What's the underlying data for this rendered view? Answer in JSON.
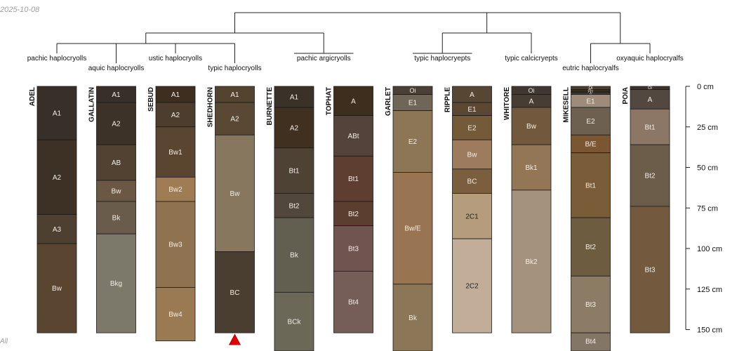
{
  "chart_data": {
    "type": "soil-profile-sketch",
    "date": "2025-10-08",
    "corner_label": "All",
    "depth_axis": {
      "unit": "cm",
      "ticks": [
        0,
        25,
        50,
        75,
        100,
        125,
        150
      ],
      "tick_labels": [
        "0 cm",
        "25 cm",
        "50 cm",
        "75 cm",
        "100 cm",
        "125 cm",
        "150 cm"
      ]
    },
    "taxa": [
      "pachic haplocryolls",
      "aquic haplocryolls",
      "ustic haplocryolls",
      "typic haplocryolls",
      "pachic argicryolls",
      "typic haplocryepts",
      "typic calcicryepts",
      "eutric haplocryalfs",
      "oxyaquic haplocryalfs"
    ],
    "profiles": [
      {
        "name": "ADEL",
        "taxon": "pachic haplocryolls",
        "horizons": [
          {
            "name": "A1",
            "top": 0,
            "bottom": 33,
            "color": "#383028"
          },
          {
            "name": "A2",
            "top": 33,
            "bottom": 79,
            "color": "#3d3024"
          },
          {
            "name": "A3",
            "top": 79,
            "bottom": 97,
            "color": "#4e4030"
          },
          {
            "name": "Bw",
            "top": 97,
            "bottom": 152,
            "color": "#5a4630"
          }
        ]
      },
      {
        "name": "GALLATIN",
        "taxon": "aquic haplocryolls",
        "horizons": [
          {
            "name": "A1",
            "top": 0,
            "bottom": 10,
            "color": "#383028"
          },
          {
            "name": "A2",
            "top": 10,
            "bottom": 36,
            "color": "#3d3228"
          },
          {
            "name": "AB",
            "top": 36,
            "bottom": 58,
            "color": "#524232"
          },
          {
            "name": "Bw",
            "top": 58,
            "bottom": 71,
            "color": "#6a5844"
          },
          {
            "name": "Bk",
            "top": 71,
            "bottom": 91,
            "color": "#6a5c4a"
          },
          {
            "name": "Bkg",
            "top": 91,
            "bottom": 152,
            "color": "#7c786a"
          }
        ]
      },
      {
        "name": "SEBUD",
        "taxon": "ustic haplocryolls",
        "horizons": [
          {
            "name": "A1",
            "top": 0,
            "bottom": 10,
            "color": "#3d2e20"
          },
          {
            "name": "A2",
            "top": 10,
            "bottom": 25,
            "color": "#4c3d2e"
          },
          {
            "name": "Bw1",
            "top": 25,
            "bottom": 56,
            "color": "#5a4630"
          },
          {
            "name": "Bw2",
            "top": 56,
            "bottom": 71,
            "color": "#a07c54"
          },
          {
            "name": "Bw3",
            "top": 71,
            "bottom": 124,
            "color": "#8f7250"
          },
          {
            "name": "Bw4",
            "top": 124,
            "bottom": 157,
            "color": "#9a7a52"
          }
        ]
      },
      {
        "name": "SHEDHORN",
        "taxon": "typic haplocryolls",
        "truncated": true,
        "horizons": [
          {
            "name": "A1",
            "top": 0,
            "bottom": 10,
            "color": "#54432f"
          },
          {
            "name": "A2",
            "top": 10,
            "bottom": 30,
            "color": "#594834"
          },
          {
            "name": "Bw",
            "top": 30,
            "bottom": 102,
            "color": "#86775e"
          },
          {
            "name": "BC",
            "top": 102,
            "bottom": 152,
            "color": "#4a3e30"
          }
        ]
      },
      {
        "name": "BURNETTE",
        "taxon": "pachic argicryolls",
        "horizons": [
          {
            "name": "A1",
            "top": 0,
            "bottom": 13,
            "color": "#3a3128"
          },
          {
            "name": "A2",
            "top": 13,
            "bottom": 38,
            "color": "#3f3020"
          },
          {
            "name": "Bt1",
            "top": 38,
            "bottom": 66,
            "color": "#4e4234"
          },
          {
            "name": "Bt2",
            "top": 66,
            "bottom": 81,
            "color": "#51473a"
          },
          {
            "name": "Bk",
            "top": 81,
            "bottom": 127,
            "color": "#625e50"
          },
          {
            "name": "BCk",
            "top": 127,
            "bottom": 165,
            "color": "#6c6858"
          }
        ]
      },
      {
        "name": "TOPHAT",
        "taxon": "pachic argicryolls",
        "horizons": [
          {
            "name": "A",
            "top": 0,
            "bottom": 18,
            "color": "#3e2e1e"
          },
          {
            "name": "ABt",
            "top": 18,
            "bottom": 43,
            "color": "#54433a"
          },
          {
            "name": "Bt1",
            "top": 43,
            "bottom": 71,
            "color": "#5e3e30"
          },
          {
            "name": "Bt2",
            "top": 71,
            "bottom": 86,
            "color": "#5c3e30"
          },
          {
            "name": "Bt3",
            "top": 86,
            "bottom": 114,
            "color": "#705450"
          },
          {
            "name": "Bt4",
            "top": 114,
            "bottom": 152,
            "color": "#765e58"
          }
        ]
      },
      {
        "name": "GARLET",
        "taxon": "typic haplocryepts",
        "horizons": [
          {
            "name": "Oi",
            "top": 0,
            "bottom": 5,
            "color": "#4a4038"
          },
          {
            "name": "E1",
            "top": 5,
            "bottom": 15,
            "color": "#6f6658"
          },
          {
            "name": "E2",
            "top": 15,
            "bottom": 53,
            "color": "#8c7656"
          },
          {
            "name": "Bw/E",
            "top": 53,
            "bottom": 122,
            "color": "#987452"
          },
          {
            "name": "Bk",
            "top": 122,
            "bottom": 165,
            "color": "#8c7658"
          }
        ]
      },
      {
        "name": "RIPPLE",
        "taxon": "typic haplocryepts",
        "horizons": [
          {
            "name": "A",
            "top": 0,
            "bottom": 10,
            "color": "#584634"
          },
          {
            "name": "E1",
            "top": 10,
            "bottom": 18,
            "color": "#5c4832"
          },
          {
            "name": "E2",
            "top": 18,
            "bottom": 33,
            "color": "#745a38"
          },
          {
            "name": "Bw",
            "top": 33,
            "bottom": 51,
            "color": "#9c7c5c"
          },
          {
            "name": "BC",
            "top": 51,
            "bottom": 66,
            "color": "#7a5e3e"
          },
          {
            "name": "2C1",
            "top": 66,
            "bottom": 94,
            "color": "#b49c7c"
          },
          {
            "name": "2C2",
            "top": 94,
            "bottom": 152,
            "color": "#c2ae98"
          }
        ]
      },
      {
        "name": "WHITORE",
        "taxon": "typic calcicryepts",
        "horizons": [
          {
            "name": "Oi",
            "top": 0,
            "bottom": 5,
            "color": "#3e3830"
          },
          {
            "name": "A",
            "top": 5,
            "bottom": 13,
            "color": "#463e34"
          },
          {
            "name": "Bw",
            "top": 13,
            "bottom": 36,
            "color": "#72593e"
          },
          {
            "name": "Bk1",
            "top": 36,
            "bottom": 64,
            "color": "#927656"
          },
          {
            "name": "Bk2",
            "top": 64,
            "bottom": 152,
            "color": "#a4927c"
          }
        ]
      },
      {
        "name": "MIKESELL",
        "taxon": "eutric haplocryalfs",
        "horizons": [
          {
            "name": "Oi",
            "top": 0,
            "bottom": 2,
            "color": "#4a3e30"
          },
          {
            "name": "Oe",
            "top": 2,
            "bottom": 3,
            "color": "#3e3428"
          },
          {
            "name": "Oa",
            "top": 3,
            "bottom": 4,
            "color": "#382e24"
          },
          {
            "name": "A",
            "top": 4,
            "bottom": 5,
            "color": "#4a4034"
          },
          {
            "name": "E1",
            "top": 5,
            "bottom": 13,
            "color": "#9e8c7a"
          },
          {
            "name": "E2",
            "top": 13,
            "bottom": 30,
            "color": "#6e6050"
          },
          {
            "name": "B/E",
            "top": 30,
            "bottom": 41,
            "color": "#7a5632"
          },
          {
            "name": "Bt1",
            "top": 41,
            "bottom": 81,
            "color": "#7a5c38"
          },
          {
            "name": "Bt2",
            "top": 81,
            "bottom": 117,
            "color": "#6e5c40"
          },
          {
            "name": "Bt3",
            "top": 117,
            "bottom": 152,
            "color": "#8c7c66"
          },
          {
            "name": "Bt4",
            "top": 152,
            "bottom": 165,
            "color": "#847666"
          }
        ]
      },
      {
        "name": "POIA",
        "taxon": "oxyaquic haplocryalfs",
        "horizons": [
          {
            "name": "Oi",
            "top": 0,
            "bottom": 2,
            "color": "#3c342c"
          },
          {
            "name": "A",
            "top": 2,
            "bottom": 14,
            "color": "#524840"
          },
          {
            "name": "Bt1",
            "top": 14,
            "bottom": 36,
            "color": "#8c7666"
          },
          {
            "name": "Bt2",
            "top": 36,
            "bottom": 74,
            "color": "#6c5c4a"
          },
          {
            "name": "Bt3",
            "top": 74,
            "bottom": 152,
            "color": "#735a3e"
          }
        ]
      }
    ]
  }
}
